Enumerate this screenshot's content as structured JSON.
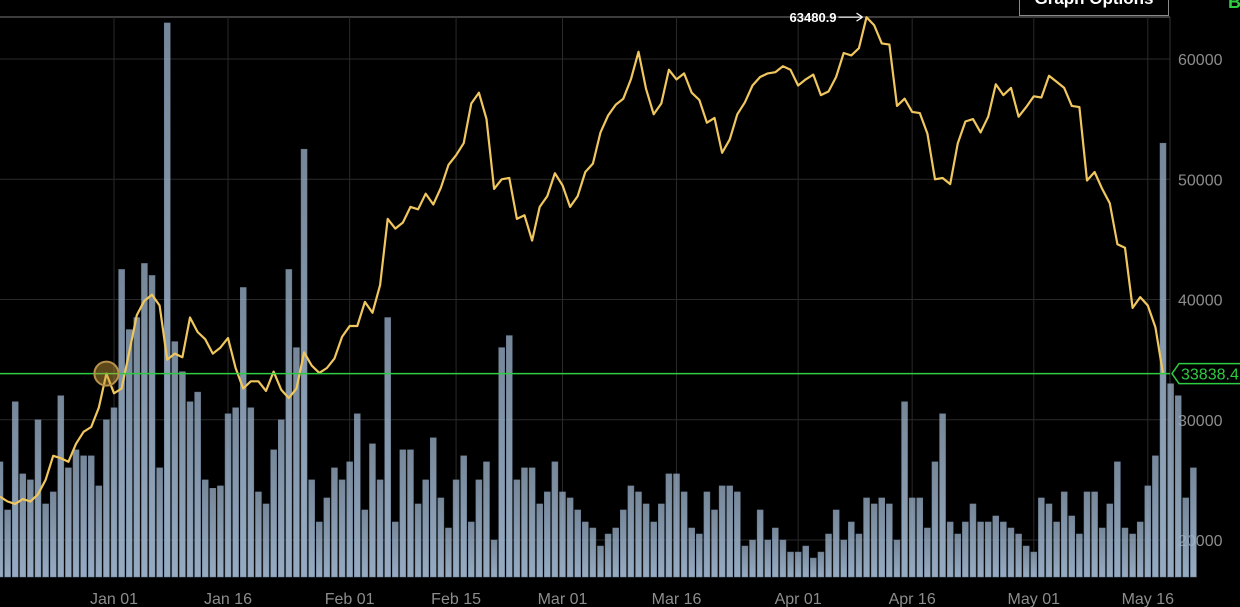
{
  "header": {
    "graph_options_label": "Graph Options",
    "corner_label": "B"
  },
  "colors": {
    "background": "#000000",
    "price_line": "#f0c75e",
    "bars": "#9eb4cc",
    "current_line": "#2ecc40",
    "grid": "#2a2a2a",
    "peak_marker": "#ffffff"
  },
  "chart_data": {
    "type": "line",
    "x_ticks": [
      "Jan 01",
      "Jan 16",
      "Feb 01",
      "Feb 15",
      "Mar 01",
      "Mar 16",
      "Apr 01",
      "Apr 16",
      "May 01",
      "May 16"
    ],
    "y_ticks": [
      "20000",
      "30000",
      "40000",
      "50000",
      "60000"
    ],
    "ylim": [
      17000,
      64000
    ],
    "grid": true,
    "peak_label": "63480.9",
    "current_label": "33838.4",
    "current_value": 33838.4,
    "series": [
      {
        "type": "line",
        "values": [
          23600,
          23200,
          23000,
          23400,
          23200,
          23800,
          25000,
          27000,
          26800,
          26500,
          28000,
          29000,
          29400,
          31000,
          33838,
          32200,
          32600,
          35600,
          38700,
          39900,
          40400,
          39500,
          35000,
          35500,
          35200,
          38500,
          37300,
          36700,
          35500,
          36000,
          36800,
          34300,
          32600,
          33200,
          33200,
          32400,
          34000,
          32500,
          31800,
          32600,
          35600,
          34500,
          33900,
          34300,
          35100,
          36900,
          37800,
          37800,
          39800,
          38900,
          41200,
          46700,
          45900,
          46400,
          47700,
          47500,
          48800,
          47900,
          49300,
          51200,
          52000,
          53000,
          56300,
          57200,
          55000,
          49200,
          50000,
          50100,
          46700,
          47000,
          44900,
          47700,
          48600,
          50500,
          49500,
          47700,
          48600,
          50600,
          51300,
          53900,
          55300,
          56200,
          56700,
          58300,
          60600,
          57500,
          55400,
          56300,
          59100,
          58300,
          58800,
          57200,
          56600,
          54700,
          55100,
          52200,
          53300,
          55400,
          56400,
          57800,
          58500,
          58800,
          58900,
          59400,
          59100,
          57800,
          58300,
          58700,
          57000,
          57300,
          58500,
          60500,
          60300,
          60900,
          63480,
          62800,
          61300,
          61200,
          56100,
          56700,
          55600,
          55500,
          53800,
          50000,
          50100,
          49600,
          53000,
          54800,
          55000,
          53900,
          55200,
          57900,
          57000,
          57600,
          55200,
          56000,
          56900,
          56800,
          58600,
          58100,
          57600,
          56100,
          56000,
          49900,
          50600,
          49200,
          48000,
          44600,
          44300,
          39300,
          40200,
          39500,
          37700,
          33838
        ]
      },
      {
        "type": "bar",
        "values": [
          26500,
          22500,
          31500,
          25500,
          25000,
          30000,
          23000,
          24000,
          32000,
          26000,
          27500,
          27000,
          27000,
          24500,
          30000,
          31000,
          42500,
          37500,
          38500,
          43000,
          42000,
          26000,
          63000,
          36500,
          34000,
          31500,
          32300,
          25000,
          24300,
          24500,
          30500,
          31000,
          41000,
          31000,
          24000,
          23000,
          27500,
          30000,
          42500,
          36000,
          52500,
          25000,
          21500,
          23500,
          26000,
          25000,
          26500,
          30500,
          22500,
          28000,
          25000,
          38500,
          21500,
          27500,
          27500,
          23000,
          25000,
          28500,
          23500,
          21000,
          25000,
          27000,
          21500,
          25000,
          26500,
          20000,
          36000,
          37000,
          25000,
          26000,
          26000,
          23000,
          24000,
          26500,
          24000,
          23500,
          22500,
          21500,
          21000,
          19500,
          20500,
          21000,
          22500,
          24500,
          24000,
          23000,
          21500,
          23000,
          25500,
          25500,
          24000,
          21000,
          20500,
          24000,
          22500,
          24500,
          24500,
          24000,
          19500,
          20000,
          22500,
          20000,
          21000,
          20000,
          19000,
          19000,
          19500,
          18500,
          19000,
          20500,
          22500,
          20000,
          21500,
          20500,
          23500,
          23000,
          23500,
          23000,
          20000,
          31500,
          23500,
          23500,
          21000,
          26500,
          30500,
          21500,
          20500,
          21500,
          23000,
          21500,
          21500,
          22000,
          21500,
          21000,
          20500,
          19500,
          19000,
          23500,
          23000,
          21500,
          24000,
          22000,
          20500,
          24000,
          24000,
          21000,
          23000,
          26500,
          21000,
          20500,
          21500,
          24500,
          27000,
          53000,
          33000,
          32000,
          23500,
          26000
        ]
      }
    ]
  }
}
